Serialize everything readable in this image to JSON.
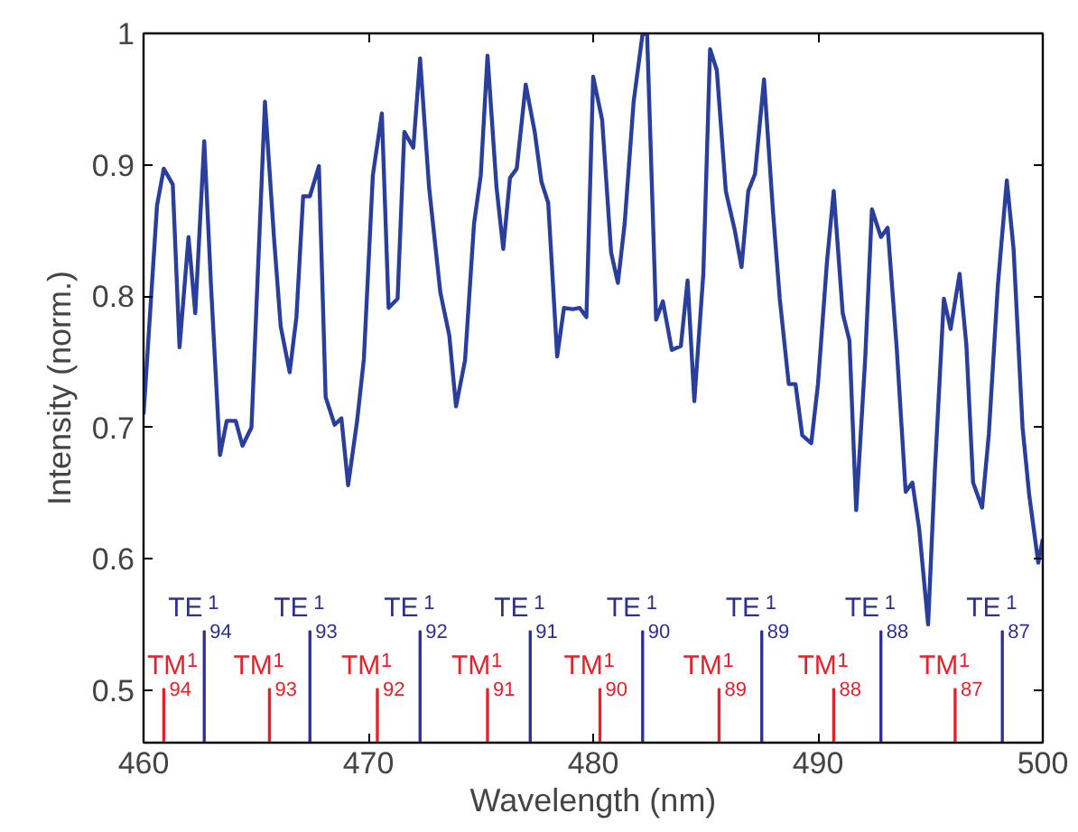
{
  "chart_data": {
    "type": "line",
    "xlabel": "Wavelength (nm)",
    "ylabel": "Intensity (norm.)",
    "xlim": [
      460,
      500
    ],
    "ylim": [
      0.46,
      1.0
    ],
    "xticks": [
      460,
      470,
      480,
      490,
      500
    ],
    "yticks": [
      0.5,
      0.6,
      0.7,
      0.8,
      0.9,
      1
    ],
    "grid": false,
    "marker": "none",
    "line_style": "solid",
    "series": [
      {
        "type": "line",
        "color": "#2a3f9c",
        "x": [
          460.0,
          460.6,
          460.9,
          461.3,
          461.6,
          462.0,
          462.3,
          462.7,
          463.0,
          463.4,
          463.7,
          464.1,
          464.4,
          464.8,
          465.4,
          465.8,
          466.1,
          466.5,
          466.8,
          467.1,
          467.4,
          467.8,
          468.1,
          468.5,
          468.8,
          469.1,
          469.5,
          469.8,
          470.2,
          470.6,
          470.9,
          471.3,
          471.6,
          472.0,
          472.3,
          472.7,
          473.2,
          473.6,
          473.9,
          474.3,
          474.7,
          475.0,
          475.3,
          475.7,
          476.0,
          476.3,
          476.6,
          477.0,
          477.4,
          477.7,
          478.0,
          478.4,
          478.7,
          479.1,
          479.4,
          479.7,
          480.0,
          480.4,
          480.8,
          481.1,
          481.4,
          481.8,
          482.2,
          482.4,
          482.8,
          483.1,
          483.5,
          483.9,
          484.2,
          484.5,
          484.9,
          485.2,
          485.5,
          485.9,
          486.3,
          486.6,
          486.9,
          487.2,
          487.6,
          488.0,
          488.3,
          488.7,
          489.0,
          489.3,
          489.7,
          490.0,
          490.4,
          490.7,
          491.1,
          491.4,
          491.7,
          492.1,
          492.4,
          492.8,
          493.1,
          493.5,
          493.9,
          494.2,
          494.5,
          494.9,
          495.2,
          495.6,
          495.9,
          496.3,
          496.6,
          496.9,
          497.3,
          497.6,
          498.0,
          498.4,
          498.7,
          499.1,
          499.4,
          499.8,
          500.0
        ],
        "values": [
          0.71,
          0.869,
          0.897,
          0.885,
          0.761,
          0.845,
          0.787,
          0.918,
          0.808,
          0.679,
          0.705,
          0.705,
          0.686,
          0.7,
          0.948,
          0.845,
          0.777,
          0.742,
          0.784,
          0.876,
          0.876,
          0.899,
          0.723,
          0.702,
          0.707,
          0.656,
          0.705,
          0.752,
          0.892,
          0.939,
          0.791,
          0.798,
          0.925,
          0.913,
          0.981,
          0.883,
          0.803,
          0.77,
          0.716,
          0.751,
          0.855,
          0.892,
          0.983,
          0.883,
          0.836,
          0.89,
          0.897,
          0.961,
          0.925,
          0.887,
          0.871,
          0.754,
          0.791,
          0.79,
          0.791,
          0.784,
          0.967,
          0.934,
          0.833,
          0.81,
          0.855,
          0.948,
          1.0,
          0.999,
          0.782,
          0.796,
          0.759,
          0.762,
          0.812,
          0.72,
          0.817,
          0.988,
          0.972,
          0.88,
          0.85,
          0.822,
          0.88,
          0.893,
          0.965,
          0.864,
          0.798,
          0.733,
          0.733,
          0.694,
          0.688,
          0.733,
          0.826,
          0.88,
          0.787,
          0.766,
          0.637,
          0.752,
          0.866,
          0.845,
          0.852,
          0.761,
          0.651,
          0.658,
          0.623,
          0.55,
          0.667,
          0.798,
          0.775,
          0.817,
          0.763,
          0.658,
          0.639,
          0.695,
          0.808,
          0.888,
          0.836,
          0.7,
          0.648,
          0.597,
          0.615
        ]
      },
      {
        "type": "bar",
        "color": "#2e3192",
        "x": [
          462.7,
          467.4,
          472.3,
          477.2,
          482.2,
          487.5,
          492.8,
          498.2
        ],
        "values": [
          0.545,
          0.545,
          0.545,
          0.545,
          0.545,
          0.545,
          0.545,
          0.545
        ]
      },
      {
        "type": "bar",
        "color": "#e8202a",
        "x": [
          460.9,
          465.6,
          470.4,
          475.3,
          480.3,
          485.6,
          490.7,
          496.1
        ],
        "values": [
          0.501,
          0.501,
          0.501,
          0.501,
          0.501,
          0.501,
          0.501,
          0.501
        ]
      }
    ],
    "annotations": [
      {
        "text": "TE$^{1}$$_{94}$",
        "x": 462.7,
        "y": 0.545
      },
      {
        "text": "TE$^{1}$$_{93}$",
        "x": 467.4,
        "y": 0.545
      },
      {
        "text": "TE$^{1}$$_{92}$",
        "x": 472.3,
        "y": 0.545
      },
      {
        "text": "TE$^{1}$$_{91}$",
        "x": 477.2,
        "y": 0.545
      },
      {
        "text": "TE$^{1}$$_{90}$",
        "x": 482.2,
        "y": 0.545
      },
      {
        "text": "TE$^{1}$$_{89}$",
        "x": 487.5,
        "y": 0.545
      },
      {
        "text": "TE$^{1}$$_{88}$",
        "x": 492.8,
        "y": 0.545
      },
      {
        "text": "TE$^{1}$$_{87}$",
        "x": 498.2,
        "y": 0.545
      },
      {
        "text": "TM$^{1}$$_{94}$",
        "x": 460.9,
        "y": 0.501
      },
      {
        "text": "TM$^{1}$$_{93}$",
        "x": 465.6,
        "y": 0.501
      },
      {
        "text": "TM$^{1}$$_{92}$",
        "x": 470.4,
        "y": 0.501
      },
      {
        "text": "TM$^{1}$$_{91}$",
        "x": 475.3,
        "y": 0.501
      },
      {
        "text": "TM$^{1}$$_{90}$",
        "x": 480.3,
        "y": 0.501
      },
      {
        "text": "TM$^{1}$$_{89}$",
        "x": 485.6,
        "y": 0.501
      },
      {
        "text": "TM$^{1}$$_{88}$",
        "x": 490.7,
        "y": 0.501
      },
      {
        "text": "TM$^{1}$$_{87}$",
        "x": 496.1,
        "y": 0.501
      }
    ]
  }
}
